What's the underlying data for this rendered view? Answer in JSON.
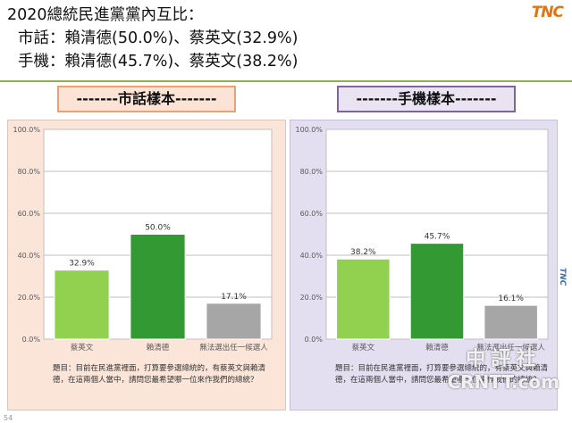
{
  "header": {
    "title": "2020總統民進黨黨內互比：",
    "line_landline": "市話：賴清德(50.0%)、蔡英文(32.9%)",
    "line_mobile": "手機：賴清德(45.7%)、蔡英文(38.2%)",
    "logo": "TNC"
  },
  "colors": {
    "light_green": "#92d050",
    "dark_green": "#339933",
    "gray": "#a6a6a6",
    "rule": "#8fb04a"
  },
  "panels": {
    "landline": {
      "label": "-------市話樣本-------",
      "question": "題目：目前在民進黨裡面，打算要參選總統的，有蔡英文與賴清德，在這兩個人當中，請問您最希望哪一位來作我們的總統？"
    },
    "mobile": {
      "label": "-------手機樣本-------",
      "question": "題目：目前在民進黨裡面，打算要參選總統的，有蔡英文與賴清德，在這兩個人當中，請問您最希望哪一位來作我們的總統？"
    }
  },
  "chart_data": [
    {
      "type": "bar",
      "categories": [
        "蔡英文",
        "賴清德",
        "無法選出任一候選人"
      ],
      "values": [
        32.9,
        50.0,
        17.1
      ],
      "data_labels": [
        "32.9%",
        "50.0%",
        "17.1%"
      ],
      "yticks": [
        "0.0%",
        "20.0%",
        "40.0%",
        "60.0%",
        "80.0%",
        "100.0%"
      ],
      "ylim": [
        0,
        100
      ],
      "grid": true,
      "bar_colors": [
        "#92d050",
        "#339933",
        "#a6a6a6"
      ]
    },
    {
      "type": "bar",
      "categories": [
        "蔡英文",
        "賴清德",
        "無法選出任一候選人"
      ],
      "values": [
        38.2,
        45.7,
        16.1
      ],
      "data_labels": [
        "38.2%",
        "45.7%",
        "16.1%"
      ],
      "yticks": [
        "0.0%",
        "20.0%",
        "40.0%",
        "60.0%",
        "80.0%",
        "100.0%"
      ],
      "ylim": [
        0,
        100
      ],
      "grid": true,
      "bar_colors": [
        "#92d050",
        "#339933",
        "#a6a6a6"
      ]
    }
  ],
  "watermark": {
    "cn": "中評社",
    "en": "CRNTT.com"
  },
  "footer": {
    "page": "54",
    "edge_logo": "TNC"
  }
}
